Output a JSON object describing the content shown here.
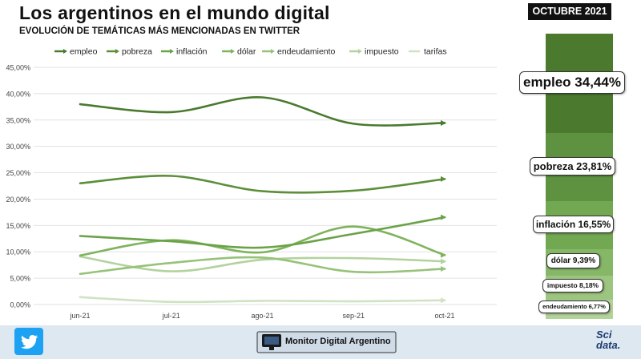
{
  "header": {
    "title": "Los argentinos en el mundo digital",
    "subtitle": "EVOLUCIÓN DE TEMÁTICAS MÁS MENCIONADAS EN TWITTER",
    "month_badge": "OCTUBRE 2021"
  },
  "chart_data": {
    "type": "line",
    "categories": [
      "jun-21",
      "jul-21",
      "ago-21",
      "sep-21",
      "oct-21"
    ],
    "ylim": [
      0,
      45
    ],
    "yticks": [
      "0,00%",
      "5,00%",
      "10,00%",
      "15,00%",
      "20,00%",
      "25,00%",
      "30,00%",
      "35,00%",
      "40,00%",
      "45,00%"
    ],
    "series": [
      {
        "name": "empleo",
        "color": "#4a7a2e",
        "values": [
          38.0,
          36.5,
          39.3,
          34.3,
          34.44
        ]
      },
      {
        "name": "pobreza",
        "color": "#5b8f3a",
        "values": [
          23.0,
          24.4,
          21.5,
          21.6,
          23.81
        ]
      },
      {
        "name": "inflación",
        "color": "#6aa247",
        "values": [
          13.0,
          12.0,
          10.8,
          13.4,
          16.55
        ]
      },
      {
        "name": "dólar",
        "color": "#7eb35c",
        "values": [
          9.3,
          12.2,
          9.9,
          14.8,
          9.39
        ]
      },
      {
        "name": "endeudamiento",
        "color": "#97c27a",
        "values": [
          5.8,
          7.9,
          8.9,
          6.2,
          6.77
        ]
      },
      {
        "name": "impuesto",
        "color": "#b4d29f",
        "values": [
          9.1,
          6.3,
          8.5,
          8.8,
          8.18
        ]
      },
      {
        "name": "tarifas",
        "color": "#cfe2c2",
        "values": [
          1.4,
          0.5,
          0.7,
          0.6,
          0.8
        ]
      }
    ],
    "xlabel": "",
    "ylabel": ""
  },
  "sidebar": {
    "segments": [
      {
        "color": "#4b7a2e",
        "value": 34.44
      },
      {
        "color": "#5e9240",
        "value": 23.81
      },
      {
        "color": "#72a851",
        "value": 16.55
      },
      {
        "color": "#86b767",
        "value": 9.39
      },
      {
        "color": "#9cc57f",
        "value": 8.18
      },
      {
        "color": "#b2d39a",
        "value": 6.77
      }
    ],
    "callouts": [
      {
        "text": "empleo 34,44%"
      },
      {
        "text": "pobreza 23,81%"
      },
      {
        "text": "inflación 16,55%"
      },
      {
        "text": "dólar 9,39%"
      },
      {
        "text": "impuesto 8,18%"
      },
      {
        "text": "endeudamiento 6,77%"
      }
    ]
  },
  "footer": {
    "brand": "Monitor Digital Argentino",
    "logo_line1": "Sci",
    "logo_line2": "data."
  }
}
